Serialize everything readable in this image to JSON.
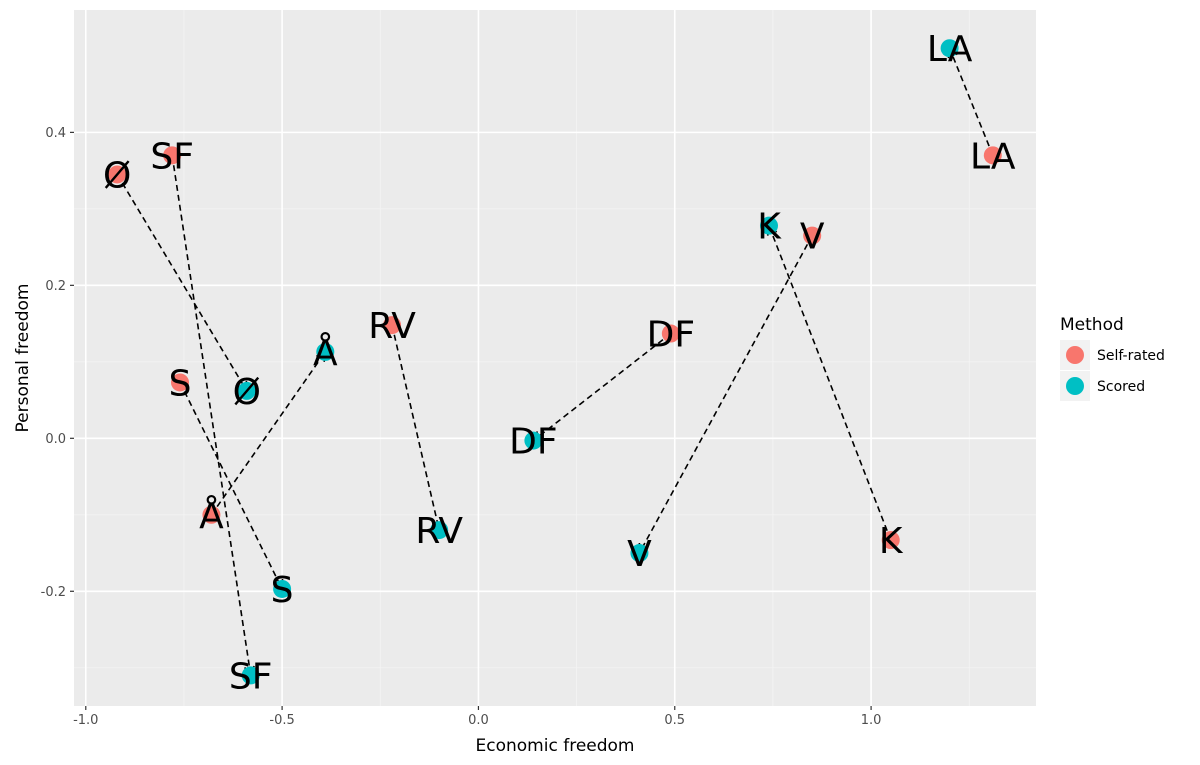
{
  "chart_data": {
    "type": "scatter",
    "title": "",
    "xlabel": "Economic freedom",
    "ylabel": "Personal freedom",
    "xlim": [
      -1.03,
      1.42
    ],
    "ylim": [
      -0.35,
      0.56
    ],
    "xticks": [
      -1.0,
      -0.5,
      0.0,
      0.5,
      1.0
    ],
    "xtick_labels": [
      "-1.0",
      "-0.5",
      "0.0",
      "0.5",
      "1.0"
    ],
    "yticks": [
      -0.2,
      0.0,
      0.2,
      0.4
    ],
    "ytick_labels": [
      "-0.2",
      "0.0",
      "0.2",
      "0.4"
    ],
    "grid": true,
    "legend": {
      "title": "Method",
      "position": "right",
      "entries": [
        {
          "name": "Self-rated",
          "color": "#F8766D"
        },
        {
          "name": "Scored",
          "color": "#00BFC4"
        }
      ]
    },
    "series": [
      {
        "name": "Self-rated",
        "color": "#F8766D",
        "points": [
          {
            "label": "SF",
            "x": -0.78,
            "y": 0.37
          },
          {
            "label": "Ø",
            "x": -0.92,
            "y": 0.345
          },
          {
            "label": "S",
            "x": -0.76,
            "y": 0.073
          },
          {
            "label": "Å",
            "x": -0.68,
            "y": -0.1
          },
          {
            "label": "RV",
            "x": -0.22,
            "y": 0.148
          },
          {
            "label": "DF",
            "x": 0.49,
            "y": 0.137
          },
          {
            "label": "V",
            "x": 0.85,
            "y": 0.265
          },
          {
            "label": "K",
            "x": 1.05,
            "y": -0.133
          },
          {
            "label": "LA",
            "x": 1.31,
            "y": 0.37
          }
        ]
      },
      {
        "name": "Scored",
        "color": "#00BFC4",
        "points": [
          {
            "label": "SF",
            "x": -0.58,
            "y": -0.31
          },
          {
            "label": "Ø",
            "x": -0.59,
            "y": 0.062
          },
          {
            "label": "S",
            "x": -0.5,
            "y": -0.197
          },
          {
            "label": "Å",
            "x": -0.39,
            "y": 0.113
          },
          {
            "label": "RV",
            "x": -0.1,
            "y": -0.12
          },
          {
            "label": "DF",
            "x": 0.14,
            "y": -0.003
          },
          {
            "label": "V",
            "x": 0.41,
            "y": -0.15
          },
          {
            "label": "K",
            "x": 0.74,
            "y": 0.278
          },
          {
            "label": "LA",
            "x": 1.2,
            "y": 0.51
          }
        ]
      }
    ]
  }
}
